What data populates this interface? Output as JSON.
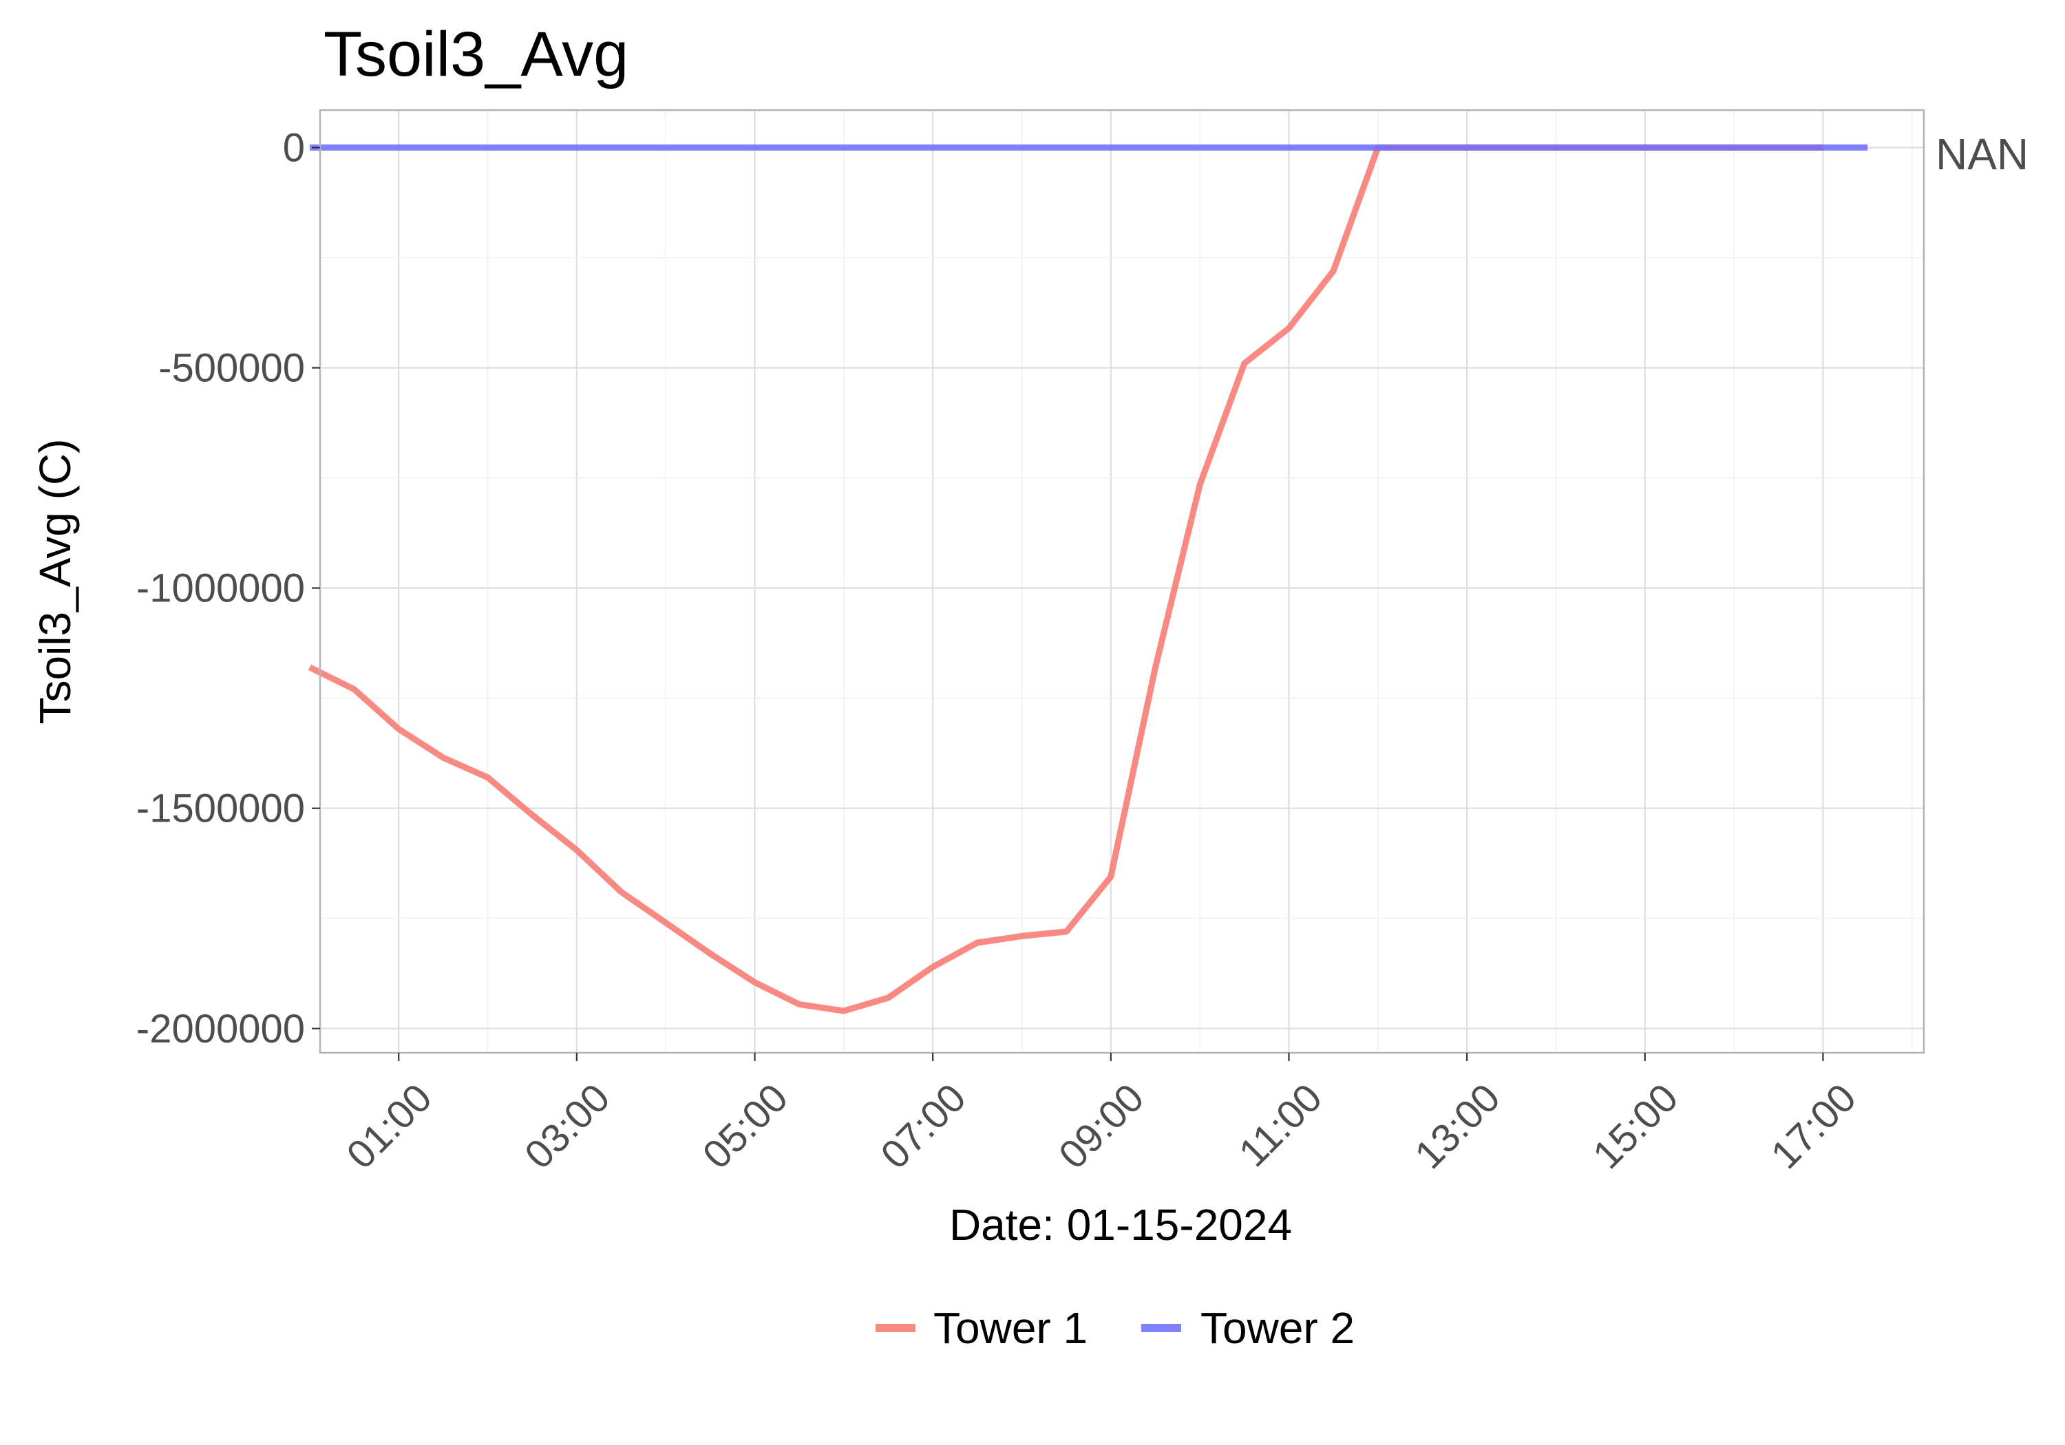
{
  "chart_data": {
    "type": "line",
    "title": "Tsoil3_Avg",
    "xlabel": "Date: 01-15-2024",
    "ylabel": "Tsoil3_Avg (C)",
    "secondary_axis_label": "NAN",
    "x_ticks": [
      "01:00",
      "03:00",
      "05:00",
      "07:00",
      "09:00",
      "11:00",
      "13:00",
      "15:00",
      "17:00"
    ],
    "y_ticks": [
      "0",
      "-500000",
      "-1000000",
      "-1500000",
      "-2000000"
    ],
    "y_tick_values": [
      0,
      -500000,
      -1000000,
      -1500000,
      -2000000
    ],
    "xlim": [
      "00:07",
      "18:08"
    ],
    "ylim": [
      -2055000,
      85000
    ],
    "grid": true,
    "legend_position": "bottom",
    "series": [
      {
        "name": "Tower 1",
        "color": "#f8766d",
        "x": [
          "00:00",
          "00:30",
          "01:00",
          "01:30",
          "02:00",
          "02:30",
          "03:00",
          "03:30",
          "04:00",
          "04:30",
          "05:00",
          "05:30",
          "06:00",
          "06:30",
          "07:00",
          "07:30",
          "08:00",
          "08:30",
          "09:00",
          "09:30",
          "10:00",
          "10:30",
          "11:00",
          "11:30",
          "12:00",
          "12:30",
          "13:00",
          "13:30",
          "14:00",
          "14:30",
          "15:00",
          "15:30",
          "16:00",
          "16:30",
          "17:00"
        ],
        "values": [
          -1180000,
          -1230000,
          -1320000,
          -1385000,
          -1430000,
          -1515000,
          -1595000,
          -1690000,
          -1760000,
          -1830000,
          -1895000,
          -1945000,
          -1960000,
          -1930000,
          -1860000,
          -1805000,
          -1790000,
          -1780000,
          -1655000,
          -1180000,
          -765000,
          -490000,
          -410000,
          -280000,
          0,
          0,
          0,
          0,
          0,
          0,
          0,
          0,
          0,
          0,
          0
        ]
      },
      {
        "name": "Tower 2",
        "color": "#6b6bff",
        "x": [
          "00:00",
          "17:30"
        ],
        "values": [
          0,
          0
        ]
      }
    ]
  }
}
